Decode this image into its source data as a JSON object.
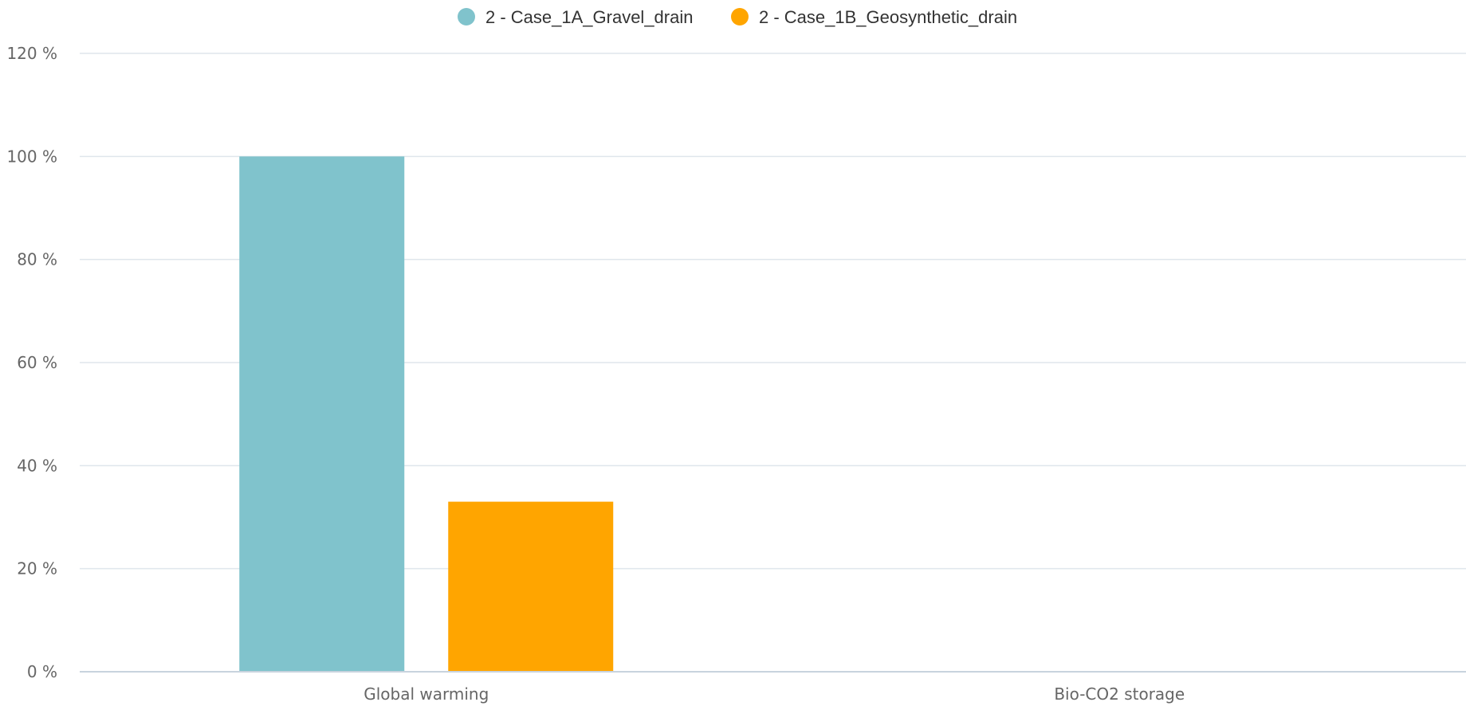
{
  "chart_data": {
    "type": "bar",
    "categories": [
      "Global warming",
      "Bio-CO2 storage"
    ],
    "series": [
      {
        "name": "2 - Case_1A_Gravel_drain",
        "color": "#80c3cc",
        "values": [
          100,
          0
        ]
      },
      {
        "name": "2 - Case_1B_Geosynthetic_drain",
        "color": "#ffa500",
        "values": [
          33,
          0
        ]
      }
    ],
    "y_ticks": [
      "0 %",
      "20 %",
      "40 %",
      "60 %",
      "80 %",
      "100 %",
      "120 %"
    ],
    "ylim": [
      0,
      120
    ],
    "grid": true,
    "legend_position": "top-center"
  }
}
